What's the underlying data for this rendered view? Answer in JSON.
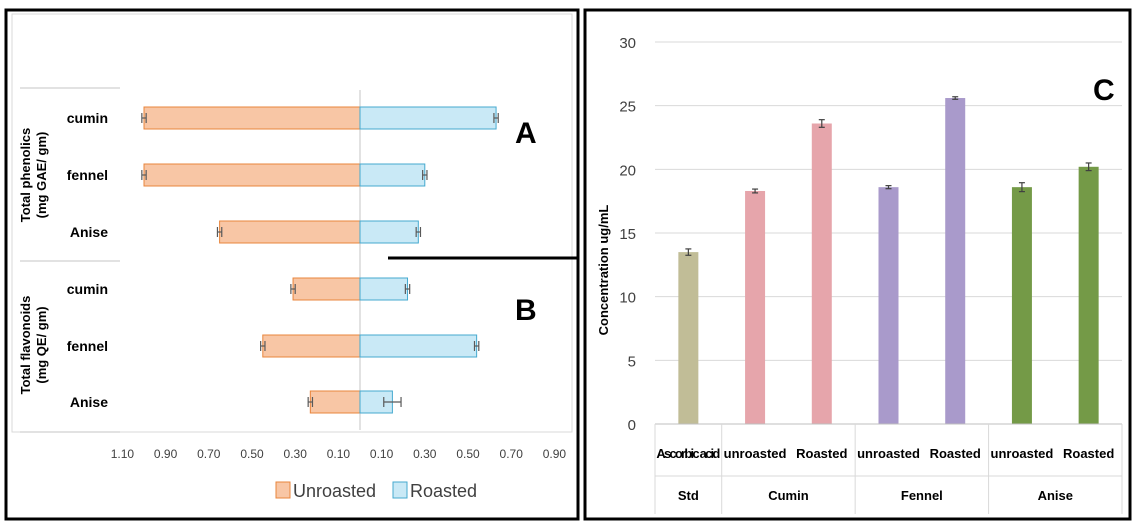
{
  "chart_data": [
    {
      "type": "bar",
      "orientation": "horizontal-diverging",
      "panel_label": "A",
      "group_label_line1": "Total phenolics",
      "group_label_line2": "(mg GAE/ gm)",
      "categories": [
        "cumin",
        "fennel",
        "Anise"
      ],
      "series": [
        {
          "name": "Unroasted",
          "values": [
            1.0,
            1.0,
            0.65
          ],
          "errors": [
            0.01,
            0.01,
            0.01
          ]
        },
        {
          "name": "Roasted",
          "values": [
            0.63,
            0.3,
            0.27
          ],
          "errors": [
            0.01,
            0.01,
            0.01
          ]
        }
      ],
      "axis_ticks": [
        "1.10",
        "0.90",
        "0.70",
        "0.50",
        "0.30",
        "0.10",
        "0.10",
        "0.30",
        "0.50",
        "0.70",
        "0.90"
      ],
      "xlim": [
        -1.1,
        0.9
      ],
      "legend_position": "bottom",
      "grid": false
    },
    {
      "type": "bar",
      "orientation": "horizontal-diverging",
      "panel_label": "B",
      "group_label_line1": "Total flavonoids",
      "group_label_line2": "(mg QE/ gm)",
      "categories": [
        "cumin",
        "fennel",
        "Anise"
      ],
      "series": [
        {
          "name": "Unroasted",
          "values": [
            0.31,
            0.45,
            0.23
          ],
          "errors": [
            0.01,
            0.01,
            0.01
          ]
        },
        {
          "name": "Roasted",
          "values": [
            0.22,
            0.54,
            0.15
          ],
          "errors": [
            0.01,
            0.01,
            0.04
          ]
        }
      ],
      "axis_ticks": [
        "1.10",
        "0.90",
        "0.70",
        "0.50",
        "0.30",
        "0.10",
        "0.10",
        "0.30",
        "0.50",
        "0.70",
        "0.90"
      ],
      "xlim": [
        -1.1,
        0.9
      ],
      "legend_position": "bottom",
      "grid": false
    },
    {
      "type": "bar",
      "panel_label": "C",
      "ylabel": "Concentration ug/mL",
      "ylim": [
        0,
        30
      ],
      "yticks": [
        "0",
        "5",
        "10",
        "15",
        "20",
        "25",
        "30"
      ],
      "categories": [
        "Ascorbic acid",
        "unroasted",
        "Roasted",
        "unroasted",
        "Roasted",
        "unroasted",
        "Roasted"
      ],
      "groups": [
        "Std",
        "Cumin",
        "Fennel",
        "Anise"
      ],
      "group_sizes": [
        1,
        2,
        2,
        2
      ],
      "values": [
        13.5,
        18.3,
        23.6,
        18.6,
        25.6,
        18.6,
        20.2
      ],
      "errors": [
        0.25,
        0.15,
        0.3,
        0.12,
        0.1,
        0.35,
        0.3
      ],
      "colors": [
        "#c1bd97",
        "#e6a5ab",
        "#e6a5ab",
        "#a99acb",
        "#a99acb",
        "#749a47",
        "#749a47"
      ],
      "grid": true
    }
  ],
  "legend": {
    "unroasted_label": "Unroasted",
    "roasted_label": "Roasted"
  },
  "colors": {
    "unroasted_fill": "#f8c6a5",
    "unroasted_stroke": "#e8853c",
    "roasted_fill": "#c9e9f6",
    "roasted_stroke": "#45a9cf"
  }
}
